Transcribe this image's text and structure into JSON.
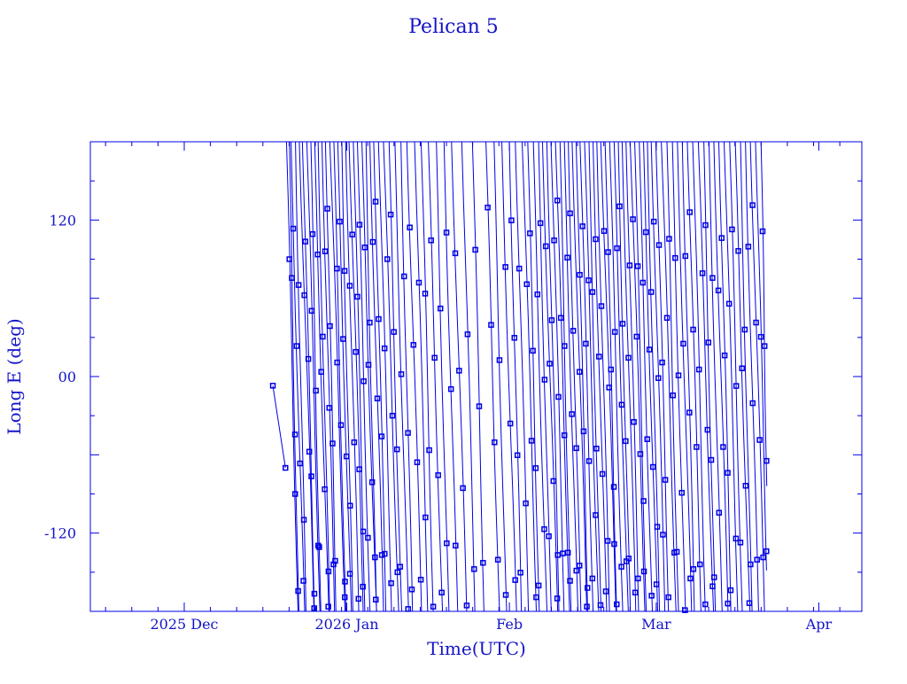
{
  "chart_data": {
    "type": "line",
    "title": "Pelican 5",
    "xlabel": "Time(UTC)",
    "ylabel": "Long E (deg)",
    "x_reference": "2025-12-01",
    "x_units": "days since 2025-12-01",
    "xlim": [
      -17.9,
      129.2
    ],
    "ylim": [
      -180,
      180
    ],
    "x_ticks": [
      {
        "day": 0,
        "label": "2025 Dec"
      },
      {
        "day": 31,
        "label": "2026 Jan"
      },
      {
        "day": 62,
        "label": "Feb"
      },
      {
        "day": 90,
        "label": "Mar"
      },
      {
        "day": 121,
        "label": "Apr"
      }
    ],
    "y_ticks": [
      {
        "value": 120,
        "label": "120"
      },
      {
        "value": 0,
        "label": "00"
      },
      {
        "value": -120,
        "label": "-120"
      }
    ],
    "grid": false,
    "color": "#0000e6",
    "initial_segment": [
      [
        16.9,
        -7
      ],
      [
        19.3,
        -70
      ]
    ],
    "end_day": 111.1,
    "end_lon": -37,
    "tracks_note": "each track: [start_day, duration_days], longitude decreasing 180 to -180",
    "tracks": [
      [
        19.5,
        2.2
      ],
      [
        20.0,
        1.8
      ],
      [
        20.3,
        2.6
      ],
      [
        21.2,
        2.0
      ],
      [
        22.0,
        2.8
      ],
      [
        22.6,
        2.3
      ],
      [
        23.4,
        2.5
      ],
      [
        24.1,
        1.9
      ],
      [
        24.8,
        2.7
      ],
      [
        25.5,
        2.2
      ],
      [
        26.3,
        2.4
      ],
      [
        27.0,
        2.0
      ],
      [
        27.8,
        2.9
      ],
      [
        28.5,
        2.3
      ],
      [
        29.2,
        2.6
      ],
      [
        30.0,
        2.1
      ],
      [
        30.8,
        2.5
      ],
      [
        31.5,
        2.7
      ],
      [
        32.3,
        2.2
      ],
      [
        33.0,
        2.4
      ],
      [
        33.8,
        2.8
      ],
      [
        34.6,
        2.0
      ],
      [
        35.4,
        2.6
      ],
      [
        36.2,
        2.3
      ],
      [
        37.1,
        2.5
      ],
      [
        38.0,
        2.9
      ],
      [
        39.0,
        2.4
      ],
      [
        40.1,
        2.6
      ],
      [
        41.3,
        2.2
      ],
      [
        42.5,
        2.8
      ],
      [
        44.0,
        2.5
      ],
      [
        45.2,
        2.3
      ],
      [
        46.5,
        2.7
      ],
      [
        48.0,
        2.4
      ],
      [
        49.5,
        2.6
      ],
      [
        51.0,
        2.9
      ],
      [
        53.0,
        2.5
      ],
      [
        55.0,
        2.2
      ],
      [
        57.5,
        2.6
      ],
      [
        59.0,
        2.4
      ],
      [
        60.5,
        2.8
      ],
      [
        62.0,
        2.3
      ],
      [
        63.2,
        2.5
      ],
      [
        64.5,
        2.7
      ],
      [
        65.5,
        2.2
      ],
      [
        66.5,
        2.6
      ],
      [
        67.5,
        2.4
      ],
      [
        68.3,
        2.9
      ],
      [
        69.2,
        2.3
      ],
      [
        70.0,
        2.5
      ],
      [
        70.8,
        2.7
      ],
      [
        71.6,
        2.1
      ],
      [
        72.4,
        2.6
      ],
      [
        73.2,
        2.4
      ],
      [
        74.0,
        2.8
      ],
      [
        74.8,
        2.2
      ],
      [
        75.5,
        2.5
      ],
      [
        76.3,
        2.7
      ],
      [
        77.1,
        2.3
      ],
      [
        77.9,
        2.6
      ],
      [
        78.7,
        2.4
      ],
      [
        79.5,
        2.9
      ],
      [
        80.3,
        2.2
      ],
      [
        81.1,
        2.5
      ],
      [
        81.9,
        2.7
      ],
      [
        82.7,
        2.3
      ],
      [
        83.5,
        2.6
      ],
      [
        84.3,
        2.4
      ],
      [
        85.1,
        2.8
      ],
      [
        85.9,
        2.2
      ],
      [
        86.7,
        2.5
      ],
      [
        87.5,
        2.7
      ],
      [
        88.3,
        2.3
      ],
      [
        89.1,
        2.6
      ],
      [
        90.0,
        2.4
      ],
      [
        91.0,
        2.8
      ],
      [
        92.0,
        2.2
      ],
      [
        93.0,
        2.5
      ],
      [
        94.0,
        2.7
      ],
      [
        95.0,
        2.3
      ],
      [
        96.0,
        2.6
      ],
      [
        97.0,
        2.4
      ],
      [
        98.0,
        2.9
      ],
      [
        99.0,
        2.2
      ],
      [
        100.0,
        2.5
      ],
      [
        101.0,
        2.7
      ],
      [
        102.0,
        2.3
      ],
      [
        103.0,
        2.6
      ],
      [
        104.0,
        2.4
      ],
      [
        105.0,
        2.8
      ],
      [
        106.0,
        2.2
      ],
      [
        107.0,
        2.5
      ],
      [
        108.0,
        2.7
      ],
      [
        109.0,
        2.3
      ],
      [
        110.0,
        1.5
      ]
    ]
  }
}
